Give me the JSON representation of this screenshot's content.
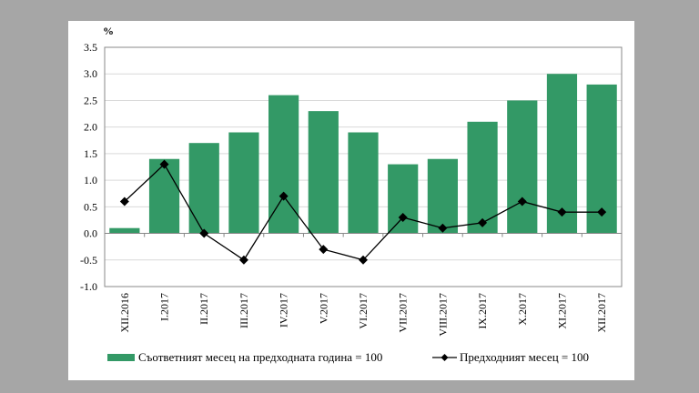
{
  "chart_data": {
    "type": "bar",
    "ylabel": "%",
    "ylim": [
      -1.0,
      3.5
    ],
    "yticks": [
      "3.5",
      "3.0",
      "2.5",
      "2.0",
      "1.5",
      "1.0",
      "0.5",
      "0.0",
      "-0.5",
      "-1.0"
    ],
    "grid": true,
    "legend_position": "bottom",
    "categories": [
      "XII.2016",
      "I.2017",
      "II.2017",
      "III.2017",
      "IV.2017",
      "V.2017",
      "VI.2017",
      "VII.2017",
      "VIII.2017",
      "IX.2017",
      "X.2017",
      "XI.2017",
      "XII.2017"
    ],
    "series": [
      {
        "name": "Съответният месец на предходната година = 100",
        "type": "bar",
        "color": "#339966",
        "values": [
          0.1,
          1.4,
          1.7,
          1.9,
          2.6,
          2.3,
          1.9,
          1.3,
          1.4,
          2.1,
          2.5,
          3.0,
          2.8
        ]
      },
      {
        "name": "Предходният месец = 100",
        "type": "line",
        "color": "#000000",
        "values": [
          0.6,
          1.3,
          0.0,
          -0.5,
          0.7,
          -0.3,
          -0.5,
          0.3,
          0.1,
          0.2,
          0.6,
          0.4,
          0.4
        ]
      }
    ]
  }
}
